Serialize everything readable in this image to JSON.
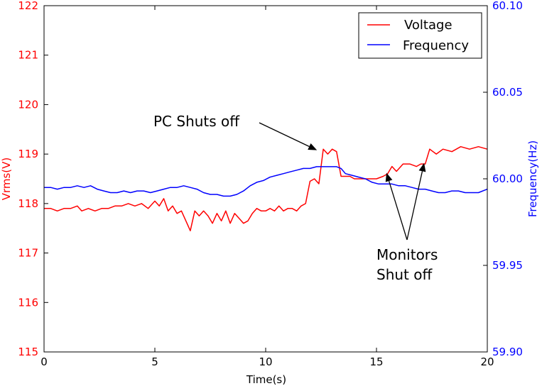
{
  "chart_data": {
    "type": "line",
    "title": "",
    "xlabel": "Time(s)",
    "ylabel_left": "Vrms(V)",
    "ylabel_right": "Frequency(Hz)",
    "xlim": [
      0,
      20
    ],
    "ylim_left": [
      115,
      122
    ],
    "ylim_right": [
      59.9,
      60.1
    ],
    "x_ticks": [
      "0",
      "5",
      "10",
      "15",
      "20"
    ],
    "y_left_ticks": [
      "115",
      "116",
      "117",
      "118",
      "119",
      "120",
      "121",
      "122"
    ],
    "y_right_ticks": [
      "59.90",
      "59.95",
      "60.00",
      "60.05",
      "60.10"
    ],
    "legend_position": "top-right",
    "colors": {
      "voltage": "#ff0000",
      "frequency": "#0000ff"
    },
    "series": [
      {
        "name": "Voltage",
        "axis": "left",
        "x": [
          0,
          0.3,
          0.6,
          0.9,
          1.2,
          1.5,
          1.7,
          2.0,
          2.3,
          2.6,
          2.9,
          3.2,
          3.5,
          3.8,
          4.1,
          4.4,
          4.7,
          5.0,
          5.2,
          5.4,
          5.6,
          5.8,
          6.0,
          6.2,
          6.4,
          6.6,
          6.8,
          7.0,
          7.2,
          7.4,
          7.6,
          7.8,
          8.0,
          8.2,
          8.4,
          8.6,
          8.8,
          9.0,
          9.2,
          9.4,
          9.6,
          9.8,
          10.0,
          10.2,
          10.4,
          10.6,
          10.8,
          11.0,
          11.2,
          11.4,
          11.6,
          11.8,
          12.0,
          12.2,
          12.4,
          12.6,
          12.8,
          13.0,
          13.2,
          13.4,
          13.6,
          13.8,
          14.0,
          14.5,
          15.0,
          15.3,
          15.5,
          15.7,
          15.9,
          16.2,
          16.5,
          16.8,
          17.0,
          17.2,
          17.4,
          17.7,
          18.0,
          18.4,
          18.8,
          19.2,
          19.6,
          20.0
        ],
        "values": [
          117.9,
          117.9,
          117.85,
          117.9,
          117.9,
          117.95,
          117.85,
          117.9,
          117.85,
          117.9,
          117.9,
          117.95,
          117.95,
          118.0,
          117.95,
          118.0,
          117.9,
          118.05,
          117.95,
          118.1,
          117.85,
          117.95,
          117.8,
          117.85,
          117.65,
          117.45,
          117.85,
          117.75,
          117.85,
          117.75,
          117.6,
          117.8,
          117.65,
          117.85,
          117.6,
          117.8,
          117.7,
          117.6,
          117.65,
          117.8,
          117.9,
          117.85,
          117.85,
          117.9,
          117.85,
          117.95,
          117.85,
          117.9,
          117.9,
          117.85,
          117.95,
          118.0,
          118.45,
          118.5,
          118.4,
          119.1,
          119.0,
          119.1,
          119.05,
          118.55,
          118.55,
          118.55,
          118.5,
          118.5,
          118.5,
          118.55,
          118.6,
          118.75,
          118.65,
          118.8,
          118.8,
          118.75,
          118.8,
          118.8,
          119.1,
          119.0,
          119.1,
          119.05,
          119.15,
          119.1,
          119.15,
          119.1
        ]
      },
      {
        "name": "Frequency",
        "axis": "right",
        "x": [
          0,
          0.3,
          0.6,
          0.9,
          1.2,
          1.5,
          1.8,
          2.1,
          2.4,
          2.7,
          3.0,
          3.3,
          3.6,
          3.9,
          4.2,
          4.5,
          4.8,
          5.1,
          5.4,
          5.7,
          6.0,
          6.3,
          6.6,
          6.9,
          7.2,
          7.5,
          7.8,
          8.1,
          8.4,
          8.7,
          9.0,
          9.3,
          9.6,
          9.9,
          10.2,
          10.5,
          10.8,
          11.1,
          11.4,
          11.7,
          12.0,
          12.3,
          12.6,
          12.9,
          13.2,
          13.4,
          13.6,
          13.9,
          14.2,
          14.5,
          14.8,
          15.1,
          15.4,
          15.7,
          16.0,
          16.3,
          16.6,
          16.9,
          17.2,
          17.5,
          17.8,
          18.1,
          18.4,
          18.7,
          19.0,
          19.3,
          19.6,
          20.0
        ],
        "values": [
          59.995,
          59.995,
          59.994,
          59.995,
          59.995,
          59.996,
          59.995,
          59.996,
          59.994,
          59.993,
          59.992,
          59.992,
          59.993,
          59.992,
          59.993,
          59.993,
          59.992,
          59.993,
          59.994,
          59.995,
          59.995,
          59.996,
          59.995,
          59.994,
          59.992,
          59.991,
          59.991,
          59.99,
          59.99,
          59.991,
          59.993,
          59.996,
          59.998,
          59.999,
          60.001,
          60.002,
          60.003,
          60.004,
          60.005,
          60.006,
          60.006,
          60.007,
          60.007,
          60.007,
          60.007,
          60.006,
          60.003,
          60.002,
          60.001,
          60.0,
          59.998,
          59.997,
          59.997,
          59.997,
          59.996,
          59.996,
          59.995,
          59.994,
          59.994,
          59.993,
          59.992,
          59.992,
          59.993,
          59.993,
          59.992,
          59.992,
          59.992,
          59.994
        ]
      }
    ],
    "annotations": [
      {
        "lines": [
          "PC Shuts off"
        ],
        "arrow_targets": [
          [
            12.25,
            119.05
          ]
        ]
      },
      {
        "lines": [
          "Monitors",
          "Shut off"
        ],
        "arrow_targets": [
          [
            15.45,
            118.65
          ],
          [
            17.15,
            118.85
          ]
        ]
      }
    ]
  }
}
